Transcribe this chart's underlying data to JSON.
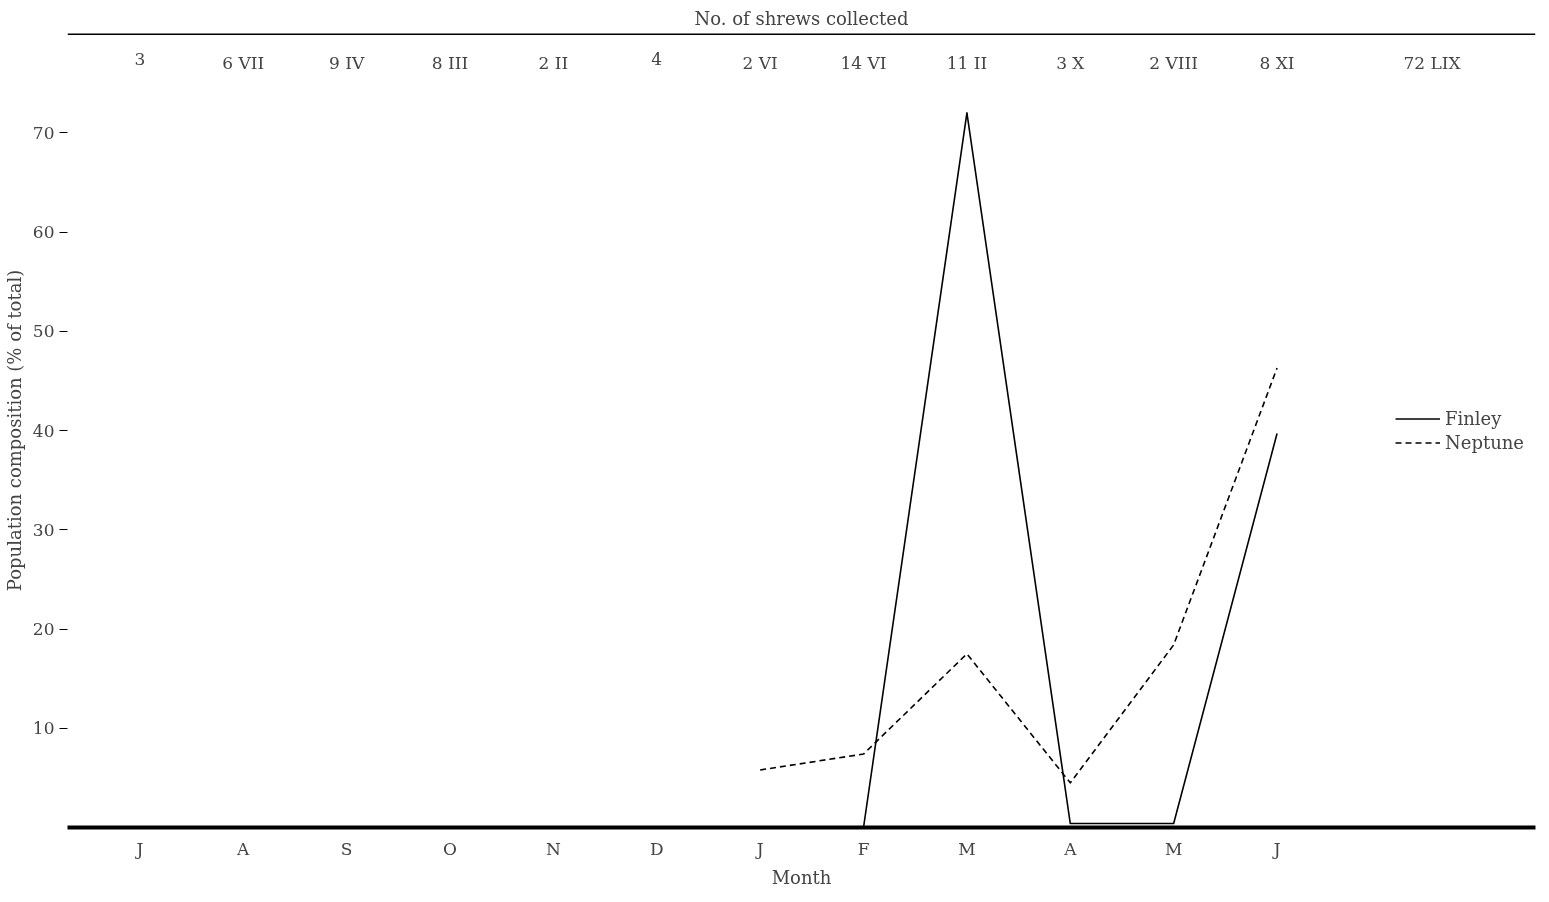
{
  "chart_data": {
    "type": "line",
    "title": "No. of shrews collected",
    "xlabel": "Month",
    "ylabel": "Population composition (% of total)",
    "categories": [
      "J",
      "A",
      "S",
      "O",
      "N",
      "D",
      "J",
      "F",
      "M",
      "A",
      "M",
      "J"
    ],
    "ylim": [
      0,
      80
    ],
    "yticks": [
      10,
      20,
      30,
      40,
      50,
      60,
      70
    ],
    "series": [
      {
        "name": "Finley",
        "color": "#000000",
        "line_style": "solid",
        "values": [
          null,
          null,
          null,
          null,
          null,
          null,
          null,
          0,
          72,
          0.4,
          0.4,
          39.7
        ]
      },
      {
        "name": "Neptune",
        "color": "#000000",
        "line_style": "dashed",
        "values": [
          null,
          null,
          null,
          null,
          null,
          null,
          5.8,
          7.4,
          17.5,
          4.5,
          18.4,
          46.3
        ]
      }
    ],
    "annotations": [
      "3",
      "6 VII",
      "9 IV",
      "8 III",
      "2 II",
      "4",
      "2 VI",
      "14 VI",
      "11 II",
      "3 X",
      "2 VIII",
      "8 XI",
      "72 LIX"
    ],
    "legend": "right",
    "grid": false
  }
}
